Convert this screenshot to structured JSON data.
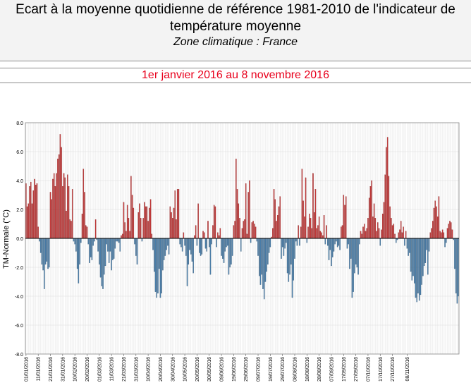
{
  "header": {
    "title": "Ecart à la moyenne quotidienne de référence 1981-2010 de l'indicateur de température moyenne",
    "subtitle": "Zone climatique : France"
  },
  "period": "1er janvier 2016 au 8 novembre 2016",
  "colors": {
    "positive": "#c43a3a",
    "negative": "#4a7eaa",
    "period_text": "#e8001c"
  },
  "chart_data": {
    "type": "bar",
    "ylabel": "TM-Normale (°C)",
    "ylim": [
      -8,
      8
    ],
    "yticks": [
      "8.0",
      "6.0",
      "4.0",
      "2.0",
      "0.0",
      "-2.0",
      "-4.0",
      "-6.0",
      "-8.0"
    ],
    "ytick_values": [
      8,
      6,
      4,
      2,
      0,
      -2,
      -4,
      -6,
      -8
    ],
    "grid": true,
    "xtick_labels": [
      "01/01/2016",
      "11/01/2016",
      "21/01/2016",
      "31/01/2016",
      "10/02/2016",
      "20/02/2016",
      "01/03/2016",
      "11/03/2016",
      "21/03/2016",
      "31/03/2016",
      "10/04/2016",
      "20/04/2016",
      "30/04/2016",
      "10/05/2016",
      "20/05/2016",
      "30/05/2016",
      "09/06/2016",
      "19/06/2016",
      "29/06/2016",
      "09/07/2016",
      "19/07/2016",
      "29/07/2016",
      "08/08/2016",
      "18/08/2016",
      "28/08/2016",
      "07/09/2016",
      "17/09/2016",
      "27/09/2016",
      "07/10/2016",
      "17/10/2016",
      "27/10/2016",
      "08/11/2016"
    ],
    "start_date": "2016-01-01",
    "end_date": "2016-11-08",
    "values": [
      3.8,
      2.2,
      2.4,
      3.6,
      3.9,
      2.4,
      3.3,
      4.1,
      3.7,
      3.8,
      0.8,
      -0.2,
      -1.0,
      -1.8,
      -2.2,
      -3.5,
      -1.8,
      -1.6,
      -2.1,
      -2.0,
      3.2,
      2.7,
      4.1,
      4.5,
      3.6,
      4.5,
      5.5,
      5.8,
      7.2,
      6.3,
      3.6,
      4.5,
      4.2,
      1.9,
      4.4,
      3.6,
      1.3,
      1.2,
      3.4,
      -0.2,
      -0.4,
      -0.9,
      -2.1,
      -3.1,
      -1.8,
      -0.3,
      1.7,
      4.8,
      3.2,
      0.9,
      0.8,
      -0.4,
      -1.7,
      -1.3,
      -1.5,
      -0.5,
      -0.2,
      1.3,
      -0.1,
      -0.9,
      -1.8,
      -2.7,
      -3.3,
      -3.5,
      -2.5,
      -1.9,
      -0.4,
      -0.9,
      -1.7,
      -0.9,
      -2.2,
      -1.5,
      -1.4,
      -0.7,
      -0.2,
      -0.2,
      -0.3,
      -0.9,
      0.2,
      0.3,
      2.5,
      1.1,
      0.5,
      2.3,
      1.4,
      0.5,
      4.3,
      3.0,
      2.1,
      -0.4,
      -1.2,
      -1.8,
      1.8,
      2.4,
      1.4,
      -0.2,
      1.4,
      2.5,
      2.2,
      2.2,
      1.2,
      2.1,
      2.7,
      0.3,
      -0.8,
      -2.3,
      -3.7,
      -4.1,
      -3.8,
      -2.1,
      -4.1,
      -3.8,
      -2.2,
      -1.5,
      -1.2,
      -0.8,
      -0.5,
      -1.1,
      2.2,
      1.8,
      1.4,
      2.1,
      3.3,
      1.3,
      3.4,
      3.4,
      -0.4,
      -0.6,
      -0.9,
      0.4,
      -0.5,
      -1.2,
      -3.3,
      -1.8,
      -0.8,
      -1.1,
      -1.6,
      -2.4,
      0.2,
      0.9,
      -0.5,
      2.4,
      -1.0,
      -1.2,
      -1.1,
      0.5,
      0.4,
      -0.7,
      -0.9,
      1.2,
      -0.6,
      -2.5,
      -0.4,
      0.9,
      2.3,
      2.2,
      -0.6,
      0.4,
      0.2,
      0.7,
      -1.2,
      -1.4,
      -1.7,
      -0.9,
      -0.6,
      -0.5,
      -2.5,
      -2.0,
      -1.8,
      -1.2,
      0.9,
      1.2,
      5.5,
      3.4,
      2.4,
      1.4,
      -0.9,
      0.7,
      1.2,
      1.3,
      3.8,
      0.3,
      3.2,
      4.0,
      -0.3,
      1.1,
      1.2,
      1.0,
      0.8,
      -0.2,
      -1.2,
      -2.6,
      -3.2,
      -2.5,
      -3.5,
      -4.2,
      -3.0,
      -2.3,
      -1.8,
      -1.0,
      -0.6,
      0.1,
      0.7,
      3.4,
      2.7,
      1.2,
      1.6,
      2.2,
      2.9,
      -1.4,
      -0.6,
      -1.2,
      -0.7,
      -0.3,
      -2.4,
      -3.0,
      -2.5,
      -1.8,
      -4.1,
      -2.9,
      -1.4,
      -0.2,
      -0.5,
      0.9,
      -0.5,
      0.8,
      4.8,
      2.6,
      1.5,
      4.2,
      -0.3,
      0.8,
      1.7,
      1.4,
      0.7,
      4.5,
      1.8,
      3.4,
      0.7,
      0.9,
      1.5,
      0.5,
      0.4,
      0.2,
      1.6,
      -0.4,
      0.9,
      -0.5,
      -1.5,
      -0.8,
      -1.9,
      -1.3,
      -0.9,
      -0.4,
      -0.2,
      -0.6,
      -0.5,
      -0.8,
      0.8,
      0.9,
      3.0,
      2.3,
      2.9,
      -0.7,
      -0.4,
      -2.1,
      -1.4,
      -4.1,
      -3.7,
      -2.4,
      -1.8,
      -2.0,
      -2.5,
      -0.4,
      0.5,
      0.3,
      0.8,
      1.0,
      0.5,
      0.7,
      1.4,
      2.8,
      3.6,
      4.0,
      1.5,
      2.4,
      1.4,
      0.5,
      1.1,
      0.7,
      -0.5,
      0.6,
      1.7,
      2.5,
      4.4,
      6.3,
      7.0,
      4.3,
      2.2,
      1.4,
      0.9,
      1.0,
      0.3,
      -0.3,
      -0.1,
      0.4,
      0.6,
      1.2,
      0.4,
      0.8,
      -0.5,
      0.5,
      -0.7,
      -1.2,
      -1.0,
      -2.3,
      -2.9,
      -2.6,
      -3.1,
      -4.1,
      -4.4,
      -3.8,
      -4.3,
      -3.9,
      -3.2,
      -2.6,
      -1.9,
      -1.7,
      -0.8,
      -2.5,
      -0.9,
      0.4,
      0.7,
      1.2,
      2.1,
      2.6,
      2.2,
      1.5,
      2.9,
      0.5,
      0.4,
      0.6,
      0.4,
      -0.6,
      -0.3,
      0.7,
      1.0,
      1.2,
      1.1,
      0.6,
      -0.1,
      -2.1,
      -3.8,
      -4.5,
      -4.0
    ]
  }
}
